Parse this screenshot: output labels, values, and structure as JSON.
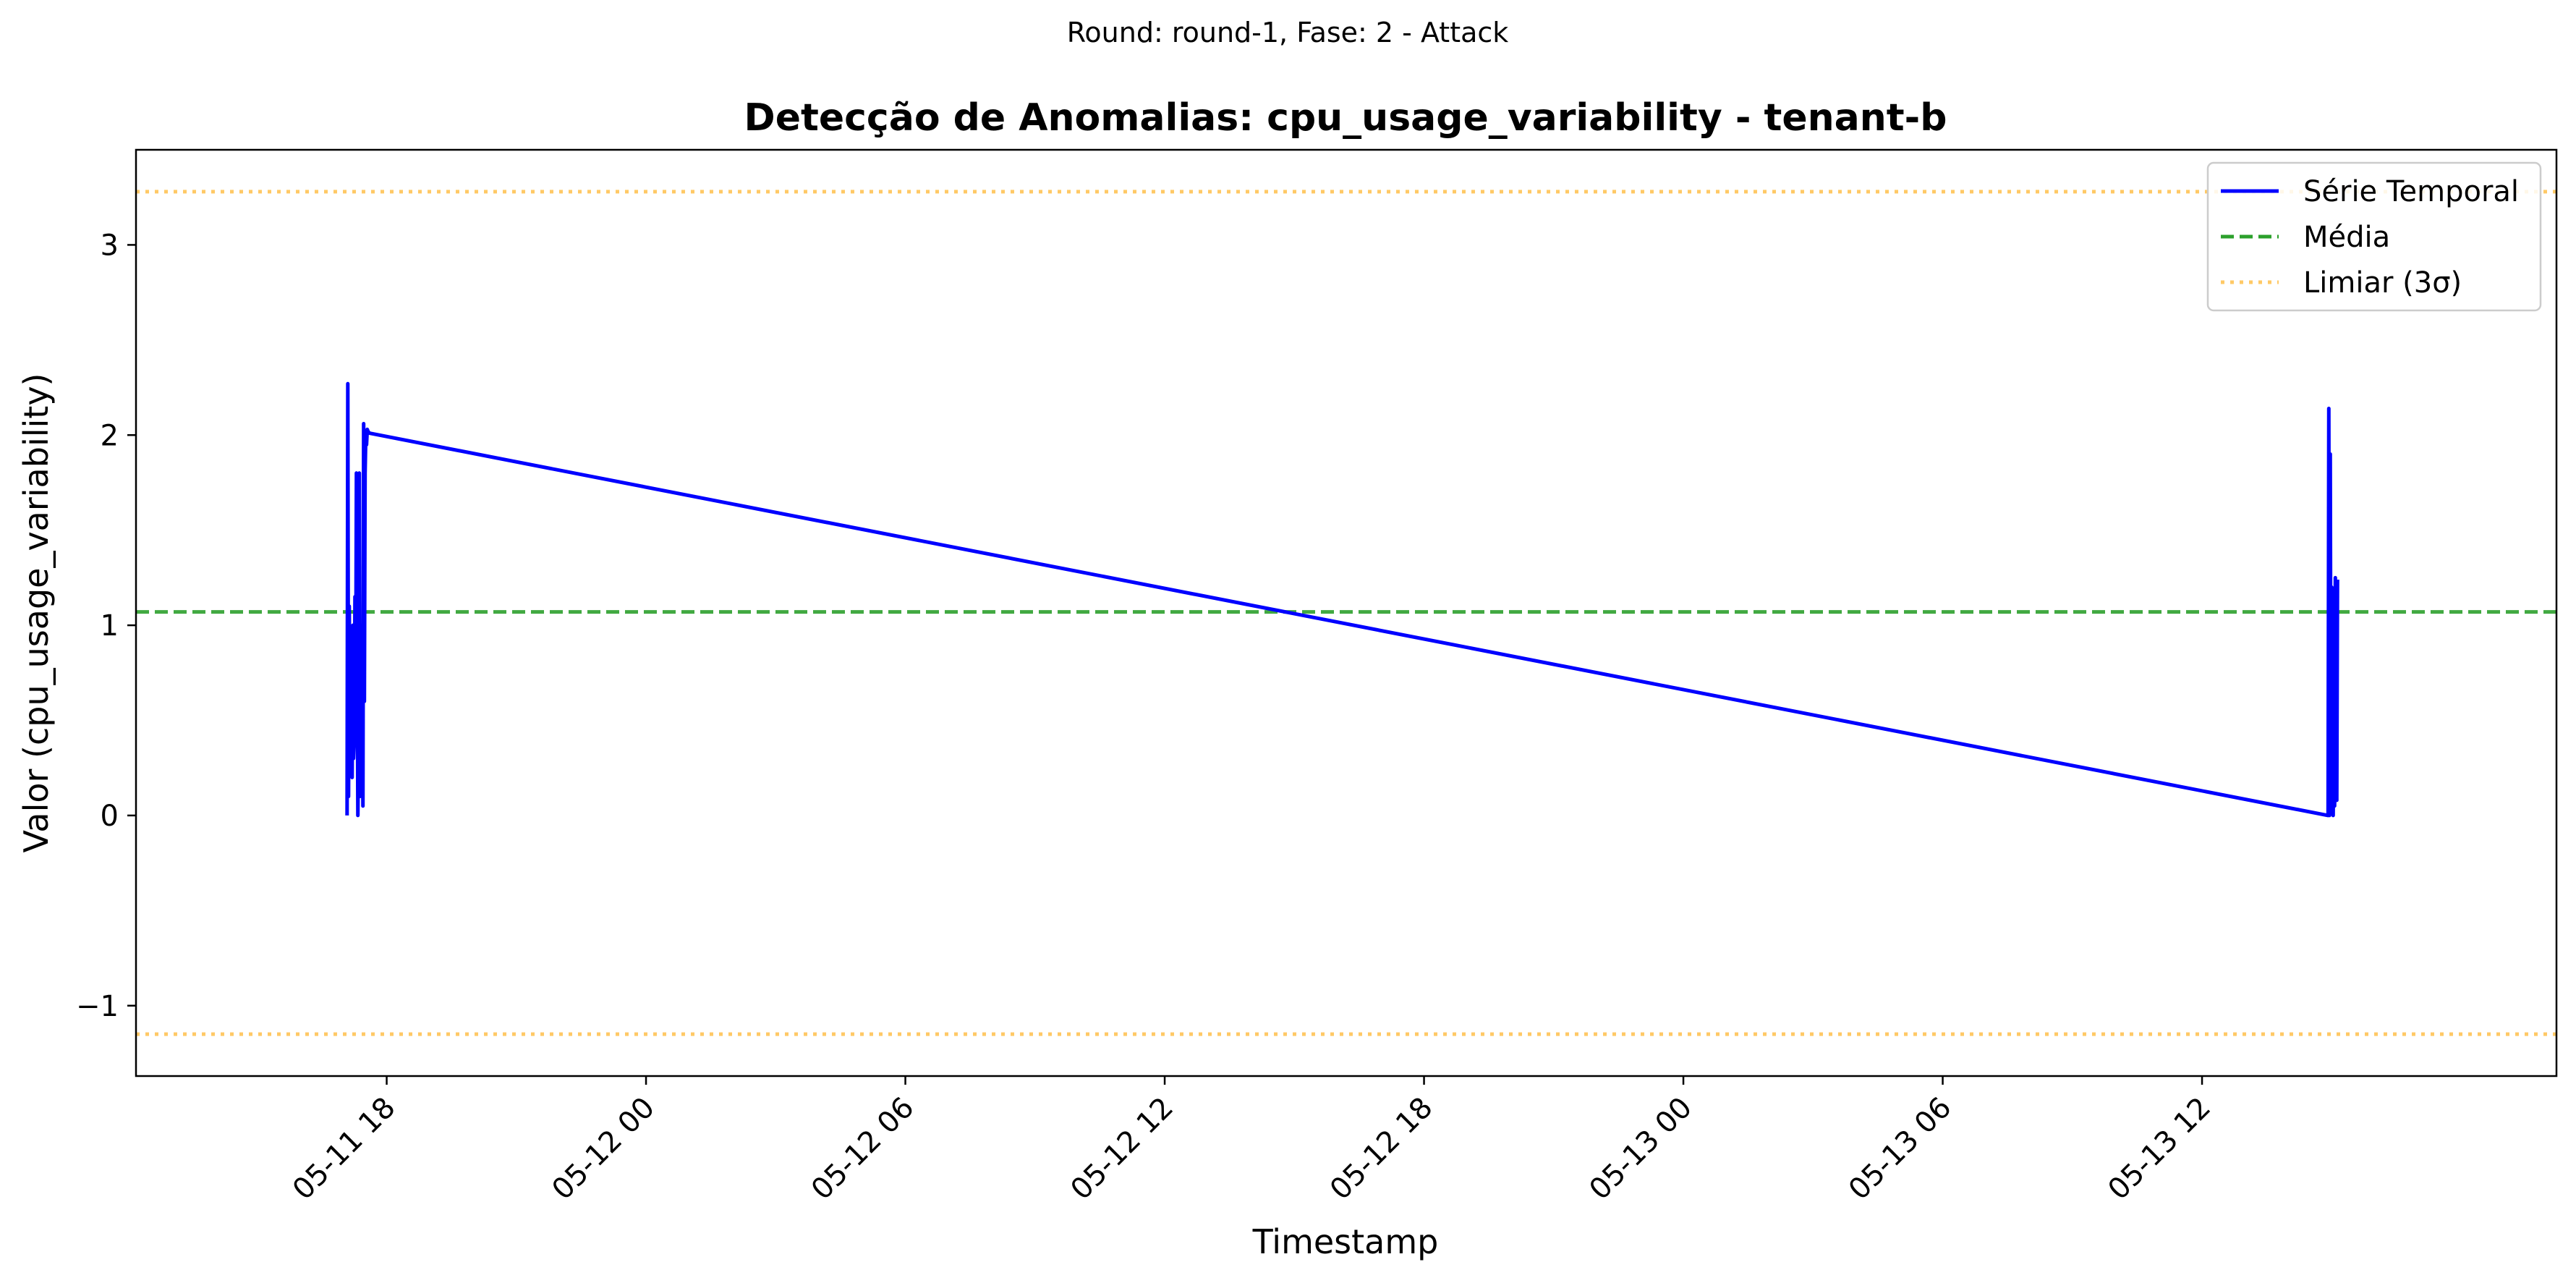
{
  "suptitle": "Round: round-1, Fase: 2 - Attack",
  "chart_data": {
    "type": "line",
    "title": "Detecção de Anomalias: cpu_usage_variability - tenant-b",
    "xlabel": "Timestamp",
    "ylabel": "Valor (cpu_usage_variability)",
    "x_axis_type": "datetime",
    "xlim": [
      "2024-05-11 12:12",
      "2024-05-13 20:12"
    ],
    "ylim": [
      -1.37,
      3.5
    ],
    "x_ticks": [
      "05-11 18",
      "05-12 00",
      "05-12 06",
      "05-12 12",
      "05-12 18",
      "05-13 00",
      "05-13 06",
      "05-13 12"
    ],
    "x_tick_values": [
      "2024-05-11 18:00",
      "2024-05-12 00:00",
      "2024-05-12 06:00",
      "2024-05-12 12:00",
      "2024-05-12 18:00",
      "2024-05-13 00:00",
      "2024-05-13 06:00",
      "2024-05-13 12:00"
    ],
    "y_ticks": [
      -1,
      0,
      1,
      2,
      3
    ],
    "y_tick_labels": [
      "−1",
      "0",
      "1",
      "2",
      "3"
    ],
    "grid": false,
    "legend_position": "top-right",
    "series": [
      {
        "name": "Série Temporal",
        "style": "solid",
        "color": "#0000ff",
        "x": [
          "2024-05-11 17:05",
          "2024-05-11 17:06",
          "2024-05-11 17:07",
          "2024-05-11 17:08",
          "2024-05-11 17:09",
          "2024-05-11 17:11",
          "2024-05-11 17:12",
          "2024-05-11 17:13",
          "2024-05-11 17:14",
          "2024-05-11 17:15",
          "2024-05-11 17:16",
          "2024-05-11 17:17",
          "2024-05-11 17:18",
          "2024-05-11 17:20",
          "2024-05-11 17:21",
          "2024-05-11 17:22",
          "2024-05-11 17:23",
          "2024-05-11 17:24",
          "2024-05-11 17:25",
          "2024-05-11 17:26",
          "2024-05-11 17:27",
          "2024-05-11 17:28",
          "2024-05-11 17:29",
          "2024-05-11 17:30",
          "2024-05-11 17:31",
          "2024-05-11 17:32",
          "2024-05-11 17:33",
          "2024-05-11 17:34",
          "2024-05-11 17:36",
          "2024-05-13 14:55",
          "2024-05-13 14:56",
          "2024-05-13 14:57",
          "2024-05-13 14:58",
          "2024-05-13 14:59",
          "2024-05-13 15:00",
          "2024-05-13 15:01",
          "2024-05-13 15:02",
          "2024-05-13 15:03",
          "2024-05-13 15:04",
          "2024-05-13 15:05",
          "2024-05-13 15:06",
          "2024-05-13 15:07",
          "2024-05-13 15:08"
        ],
        "values": [
          0.0,
          2.27,
          0.1,
          1.1,
          0.3,
          0.5,
          0.2,
          1.0,
          0.3,
          0.4,
          1.15,
          0.6,
          1.8,
          0.0,
          0.4,
          1.8,
          0.1,
          0.3,
          0.6,
          1.0,
          0.05,
          2.06,
          0.6,
          1.8,
          2.0,
          1.95,
          2.03,
          2.02,
          2.01,
          0.0,
          2.14,
          0.0,
          1.9,
          0.05,
          1.2,
          0.1,
          0.0,
          0.38,
          0.05,
          1.25,
          0.1,
          0.08,
          1.24
        ]
      },
      {
        "name": "Média",
        "style": "dashed",
        "color": "#2ca02c",
        "value": 1.07
      },
      {
        "name": "Limiar (3σ)",
        "style": "dotted",
        "color": "#ffa500",
        "values": [
          3.28,
          -1.15
        ]
      }
    ]
  }
}
